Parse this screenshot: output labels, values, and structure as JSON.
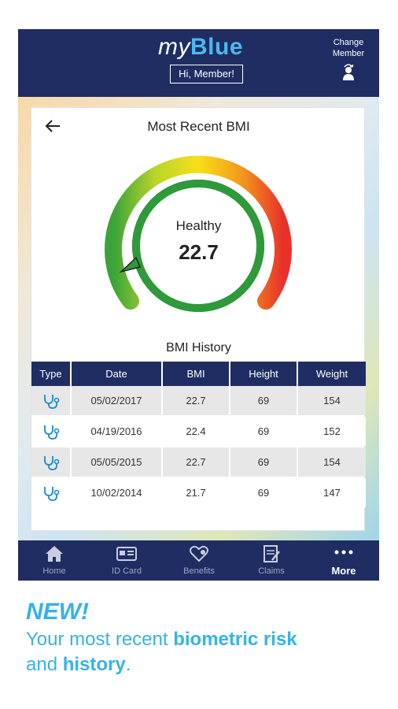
{
  "header": {
    "logo_my": "my",
    "logo_blue": "Blue",
    "greeting": "Hi, Member!",
    "change_member_line1": "Change",
    "change_member_line2": "Member"
  },
  "card": {
    "title": "Most Recent BMI",
    "status": "Healthy",
    "bmi": "22.7",
    "history_title": "BMI History"
  },
  "table": {
    "headers": [
      "Type",
      "Date",
      "BMI",
      "Height",
      "Weight"
    ],
    "rows": [
      {
        "date": "05/02/2017",
        "bmi": "22.7",
        "height": "69",
        "weight": "154"
      },
      {
        "date": "04/19/2016",
        "bmi": "22.4",
        "height": "69",
        "weight": "152"
      },
      {
        "date": "05/05/2015",
        "bmi": "22.7",
        "height": "69",
        "weight": "154"
      },
      {
        "date": "10/02/2014",
        "bmi": "21.7",
        "height": "69",
        "weight": "147"
      }
    ]
  },
  "nav": {
    "items": [
      {
        "label": "Home",
        "icon": "home-icon"
      },
      {
        "label": "ID Card",
        "icon": "id-card-icon"
      },
      {
        "label": "Benefits",
        "icon": "benefits-icon"
      },
      {
        "label": "Claims",
        "icon": "claims-icon"
      },
      {
        "label": "More",
        "icon": "more-icon"
      }
    ]
  },
  "promo": {
    "new": "NEW!",
    "line1_plain": "Your most recent ",
    "line1_bold": "biometric risk",
    "line2_plain": "and ",
    "line2_bold": "history",
    "line2_end": "."
  },
  "colors": {
    "navy": "#1f2d63",
    "accent_blue": "#35b3e8",
    "healthy_green": "#2e9a3a"
  }
}
